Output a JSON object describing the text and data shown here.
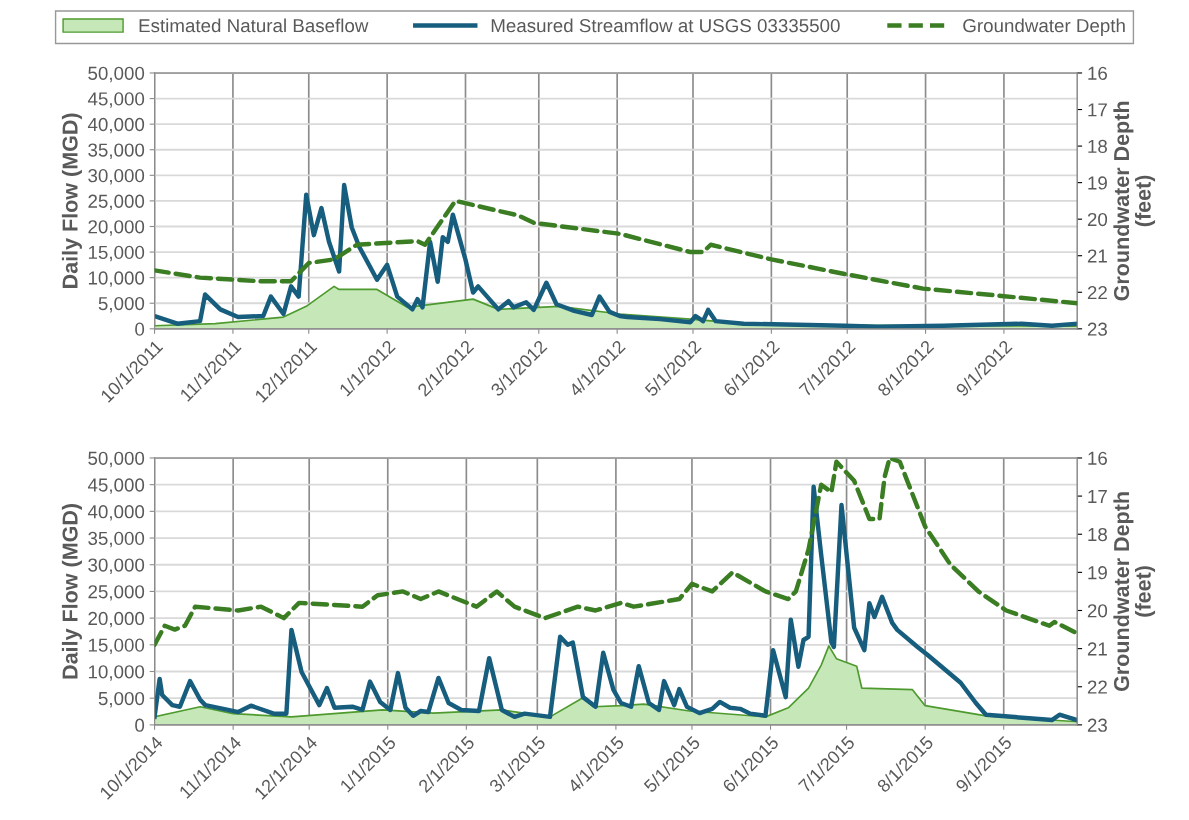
{
  "chart_data": [
    {
      "type": "line",
      "ylabel": "Daily Flow (MGD)",
      "y2label": "Groundwater Depth (feet)",
      "legend": "top",
      "grid": true,
      "xlim": [
        "2011-10-01",
        "2012-09-30"
      ],
      "xticks": [
        {
          "value": "2011-10-01",
          "label": "10/1/2011"
        },
        {
          "value": "2011-11-01",
          "label": "11/1/2011"
        },
        {
          "value": "2011-12-01",
          "label": "12/1/2011"
        },
        {
          "value": "2012-01-01",
          "label": "1/1/2012"
        },
        {
          "value": "2012-02-01",
          "label": "2/1/2012"
        },
        {
          "value": "2012-03-01",
          "label": "3/1/2012"
        },
        {
          "value": "2012-04-01",
          "label": "4/1/2012"
        },
        {
          "value": "2012-05-01",
          "label": "5/1/2012"
        },
        {
          "value": "2012-06-01",
          "label": "6/1/2012"
        },
        {
          "value": "2012-07-01",
          "label": "7/1/2012"
        },
        {
          "value": "2012-08-01",
          "label": "8/1/2012"
        },
        {
          "value": "2012-09-01",
          "label": "9/1/2012"
        }
      ],
      "ylim": [
        0,
        50000
      ],
      "yticks": [
        0,
        {
          "value": 5000,
          "label": "5,000"
        },
        {
          "value": 10000,
          "label": "10,000"
        },
        {
          "value": 15000,
          "label": "15,000"
        },
        {
          "value": 20000,
          "label": "20,000"
        },
        {
          "value": 25000,
          "label": "25,000"
        },
        {
          "value": 30000,
          "label": "30,000"
        },
        {
          "value": 35000,
          "label": "35,000"
        },
        {
          "value": 40000,
          "label": "40,000"
        },
        {
          "value": 45000,
          "label": "45,000"
        },
        {
          "value": 50000,
          "label": "50,000"
        }
      ],
      "y2lim": [
        23,
        16
      ],
      "y2ticks": [
        16,
        17,
        18,
        19,
        20,
        21,
        22,
        23
      ],
      "series": [
        {
          "name": "Estimated Natural Baseflow",
          "type": "area",
          "color": "#c6e8b8",
          "x": [
            "2011-10-01",
            "2011-10-25",
            "2011-11-21",
            "2011-11-30",
            "2011-12-11",
            "2011-12-13",
            "2011-12-28",
            "2012-01-09",
            "2012-02-04",
            "2012-02-14",
            "2012-03-09",
            "2012-04-02",
            "2012-04-30",
            "2012-05-21",
            "2012-06-30",
            "2012-09-30"
          ],
          "values": [
            600,
            1000,
            2300,
            4400,
            8300,
            7700,
            7700,
            4200,
            5800,
            3800,
            4400,
            2900,
            1900,
            1000,
            700,
            500
          ]
        },
        {
          "name": "Measured Streamflow at USGS 03335500",
          "color": "#175e7e",
          "line_style": "solid",
          "x": [
            "2011-10-01",
            "2011-10-10",
            "2011-10-19",
            "2011-10-21",
            "2011-10-27",
            "2011-11-03",
            "2011-11-13",
            "2011-11-16",
            "2011-11-21",
            "2011-11-24",
            "2011-11-27",
            "2011-11-30",
            "2011-12-03",
            "2011-12-06",
            "2011-12-09",
            "2011-12-13",
            "2011-12-15",
            "2011-12-18",
            "2011-12-21",
            "2011-12-28",
            "2012-01-01",
            "2012-01-05",
            "2012-01-11",
            "2012-01-13",
            "2012-01-15",
            "2012-01-18",
            "2012-01-21",
            "2012-01-23",
            "2012-01-25",
            "2012-01-27",
            "2012-02-01",
            "2012-02-04",
            "2012-02-06",
            "2012-02-14",
            "2012-02-18",
            "2012-02-20",
            "2012-02-25",
            "2012-02-28",
            "2012-03-04",
            "2012-03-08",
            "2012-03-15",
            "2012-03-22",
            "2012-03-25",
            "2012-03-29",
            "2012-04-02",
            "2012-04-05",
            "2012-04-18",
            "2012-04-30",
            "2012-05-02",
            "2012-05-05",
            "2012-05-07",
            "2012-05-10",
            "2012-05-21",
            "2012-06-30",
            "2012-07-13",
            "2012-08-08",
            "2012-09-08",
            "2012-09-20",
            "2012-09-30"
          ],
          "values": [
            2500,
            1000,
            1500,
            6700,
            3800,
            2300,
            2500,
            6300,
            2900,
            8300,
            6300,
            26200,
            18300,
            23600,
            17000,
            11200,
            28100,
            19800,
            16000,
            9600,
            12500,
            6300,
            3800,
            5800,
            4200,
            17000,
            9200,
            17900,
            17000,
            22300,
            13500,
            7100,
            8300,
            3800,
            5400,
            4200,
            5200,
            3700,
            9000,
            4800,
            3500,
            2700,
            6300,
            3300,
            2500,
            2300,
            1900,
            1300,
            2500,
            1500,
            3700,
            1500,
            1000,
            600,
            400,
            600,
            1000,
            600,
            1000
          ]
        },
        {
          "name": "Groundwater Depth",
          "type": "line",
          "axis": "y2",
          "color": "#3a7d22",
          "line_style": "dashed",
          "x": [
            "2011-10-01",
            "2011-10-19",
            "2011-11-12",
            "2011-11-24",
            "2011-12-01",
            "2011-12-11",
            "2011-12-20",
            "2012-01-13",
            "2012-01-16",
            "2012-01-28",
            "2012-02-22",
            "2012-02-28",
            "2012-04-02",
            "2012-04-30",
            "2012-05-05",
            "2012-05-08",
            "2012-06-01",
            "2012-06-30",
            "2012-07-31",
            "2012-08-31",
            "2012-09-30"
          ],
          "values": [
            21.4,
            21.6,
            21.7,
            21.7,
            21.2,
            21.1,
            20.7,
            20.6,
            20.7,
            19.5,
            19.9,
            20.1,
            20.4,
            20.9,
            20.9,
            20.7,
            21.1,
            21.5,
            21.9,
            22.1,
            22.3
          ]
        }
      ]
    },
    {
      "type": "line",
      "ylabel": "Daily Flow (MGD)",
      "y2label": "Groundwater Depth (feet)",
      "grid": true,
      "xlim": [
        "2014-10-01",
        "2015-09-30"
      ],
      "xticks": [
        {
          "value": "2014-10-01",
          "label": "10/1/2014"
        },
        {
          "value": "2014-11-01",
          "label": "11/1/2014"
        },
        {
          "value": "2014-12-01",
          "label": "12/1/2014"
        },
        {
          "value": "2015-01-01",
          "label": "1/1/2015"
        },
        {
          "value": "2015-02-01",
          "label": "2/1/2015"
        },
        {
          "value": "2015-03-01",
          "label": "3/1/2015"
        },
        {
          "value": "2015-04-01",
          "label": "4/1/2015"
        },
        {
          "value": "2015-05-01",
          "label": "5/1/2015"
        },
        {
          "value": "2015-06-01",
          "label": "6/1/2015"
        },
        {
          "value": "2015-07-01",
          "label": "7/1/2015"
        },
        {
          "value": "2015-08-01",
          "label": "8/1/2015"
        },
        {
          "value": "2015-09-01",
          "label": "9/1/2015"
        }
      ],
      "ylim": [
        0,
        50000
      ],
      "yticks": [
        0,
        {
          "value": 5000,
          "label": "5,000"
        },
        {
          "value": 10000,
          "label": "10,000"
        },
        {
          "value": 15000,
          "label": "15,000"
        },
        {
          "value": 20000,
          "label": "20,000"
        },
        {
          "value": 25000,
          "label": "25,000"
        },
        {
          "value": 30000,
          "label": "30,000"
        },
        {
          "value": 35000,
          "label": "35,000"
        },
        {
          "value": 40000,
          "label": "40,000"
        },
        {
          "value": 45000,
          "label": "45,000"
        },
        {
          "value": 50000,
          "label": "50,000"
        }
      ],
      "y2lim": [
        23,
        16
      ],
      "y2ticks": [
        16,
        17,
        18,
        19,
        20,
        21,
        22,
        23
      ],
      "series": [
        {
          "type": "area",
          "color": "#c6e8b8",
          "x": [
            "2014-10-01",
            "2014-10-19",
            "2014-11-01",
            "2014-11-24",
            "2014-12-30",
            "2015-01-19",
            "2015-02-15",
            "2015-03-06",
            "2015-03-19",
            "2015-03-23",
            "2015-04-03",
            "2015-04-12",
            "2015-04-30",
            "2015-05-30",
            "2015-06-08",
            "2015-06-16",
            "2015-06-21",
            "2015-06-24",
            "2015-06-27",
            "2015-07-05",
            "2015-07-07",
            "2015-07-27",
            "2015-08-01",
            "2015-08-25",
            "2015-09-30"
          ],
          "values": [
            1500,
            3400,
            2100,
            1500,
            2800,
            2200,
            2800,
            1500,
            5100,
            3400,
            3600,
            3900,
            2600,
            1500,
            3200,
            6900,
            11200,
            14800,
            12400,
            11000,
            6900,
            6600,
            3600,
            1700,
            600
          ]
        },
        {
          "color": "#175e7e",
          "line_style": "solid",
          "x": [
            "2014-10-01",
            "2014-10-03",
            "2014-10-04",
            "2014-10-08",
            "2014-10-11",
            "2014-10-15",
            "2014-10-19",
            "2014-10-21",
            "2014-10-30",
            "2014-11-03",
            "2014-11-08",
            "2014-11-17",
            "2014-11-22",
            "2014-11-24",
            "2014-11-28",
            "2014-12-05",
            "2014-12-08",
            "2014-12-11",
            "2014-12-18",
            "2014-12-22",
            "2014-12-25",
            "2014-12-29",
            "2015-01-02",
            "2015-01-05",
            "2015-01-08",
            "2015-01-11",
            "2015-01-14",
            "2015-01-17",
            "2015-01-21",
            "2015-01-25",
            "2015-01-30",
            "2015-02-06",
            "2015-02-10",
            "2015-02-15",
            "2015-02-20",
            "2015-02-24",
            "2015-03-06",
            "2015-03-10",
            "2015-03-13",
            "2015-03-15",
            "2015-03-19",
            "2015-03-24",
            "2015-03-27",
            "2015-03-31",
            "2015-04-03",
            "2015-04-07",
            "2015-04-10",
            "2015-04-14",
            "2015-04-18",
            "2015-04-20",
            "2015-04-24",
            "2015-04-26",
            "2015-04-29",
            "2015-05-04",
            "2015-05-09",
            "2015-05-12",
            "2015-05-16",
            "2015-05-20",
            "2015-05-24",
            "2015-05-30",
            "2015-06-02",
            "2015-06-07",
            "2015-06-09",
            "2015-06-12",
            "2015-06-14",
            "2015-06-16",
            "2015-06-18",
            "2015-06-21",
            "2015-06-25",
            "2015-06-26",
            "2015-06-29",
            "2015-07-04",
            "2015-07-08",
            "2015-07-10",
            "2015-07-12",
            "2015-07-15",
            "2015-07-19",
            "2015-07-21",
            "2015-07-29",
            "2015-08-02",
            "2015-08-15",
            "2015-08-21",
            "2015-08-25",
            "2015-09-20",
            "2015-09-23",
            "2015-09-30"
          ],
          "values": [
            1500,
            8600,
            5600,
            3700,
            3400,
            8200,
            4700,
            3700,
            2800,
            2400,
            3600,
            2100,
            2100,
            17800,
            9900,
            3700,
            6900,
            3200,
            3400,
            2800,
            8100,
            4300,
            2800,
            9700,
            3200,
            1700,
            2600,
            2400,
            8800,
            4100,
            2800,
            2600,
            12500,
            2800,
            1500,
            2100,
            1500,
            16500,
            15000,
            15400,
            5200,
            3400,
            13500,
            6600,
            4100,
            3400,
            11000,
            4100,
            2800,
            8200,
            3700,
            6700,
            3400,
            2200,
            3000,
            4300,
            3200,
            3000,
            2100,
            1700,
            14000,
            5200,
            19700,
            10900,
            15900,
            16500,
            44600,
            31800,
            15500,
            14600,
            41200,
            18200,
            14000,
            22800,
            20200,
            24000,
            19100,
            17800,
            14600,
            13100,
            7900,
            4100,
            1900,
            900,
            1900,
            900
          ]
        },
        {
          "type": "line",
          "axis": "y2",
          "color": "#3a7d22",
          "line_style": "dashed",
          "x": [
            "2014-10-01",
            "2014-10-05",
            "2014-10-09",
            "2014-10-13",
            "2014-10-17",
            "2014-11-03",
            "2014-11-12",
            "2014-11-21",
            "2014-11-27",
            "2014-12-22",
            "2014-12-28",
            "2015-01-07",
            "2015-01-14",
            "2015-01-21",
            "2015-02-05",
            "2015-02-13",
            "2015-02-20",
            "2015-03-04",
            "2015-03-17",
            "2015-03-24",
            "2015-04-03",
            "2015-04-08",
            "2015-04-26",
            "2015-05-01",
            "2015-05-09",
            "2015-05-17",
            "2015-05-30",
            "2015-06-08",
            "2015-06-11",
            "2015-06-16",
            "2015-06-21",
            "2015-06-25",
            "2015-06-27",
            "2015-07-04",
            "2015-07-10",
            "2015-07-14",
            "2015-07-16",
            "2015-07-18",
            "2015-07-22",
            "2015-08-01",
            "2015-08-11",
            "2015-08-22",
            "2015-09-02",
            "2015-09-19",
            "2015-09-21",
            "2015-09-30"
          ],
          "values": [
            20.9,
            20.4,
            20.5,
            20.4,
            19.9,
            20.0,
            19.9,
            20.2,
            19.8,
            19.9,
            19.6,
            19.5,
            19.7,
            19.5,
            19.9,
            19.5,
            19.9,
            20.2,
            19.9,
            20.0,
            19.8,
            19.9,
            19.7,
            19.3,
            19.5,
            19.0,
            19.5,
            19.7,
            19.5,
            18.4,
            16.7,
            16.9,
            16.1,
            16.6,
            17.6,
            17.6,
            16.5,
            16.0,
            16.1,
            17.8,
            18.8,
            19.5,
            20.0,
            20.4,
            20.3,
            20.6
          ]
        }
      ]
    }
  ]
}
